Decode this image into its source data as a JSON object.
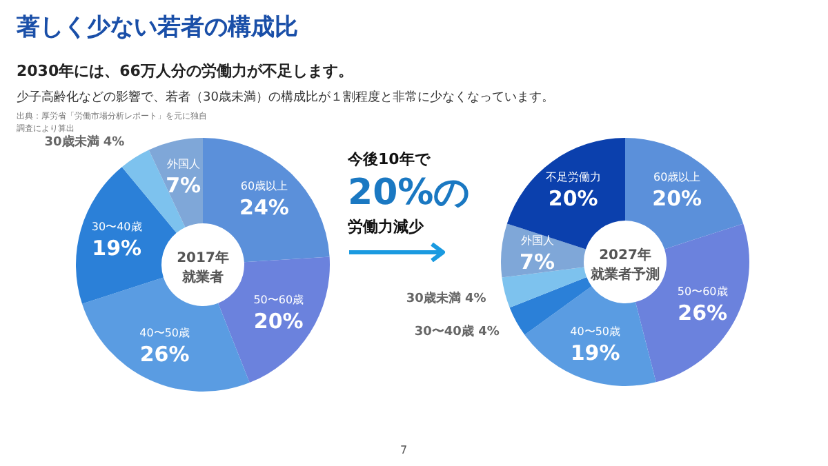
{
  "chart_data": [
    {
      "type": "donut",
      "title": "著しく少ない若者の構成比",
      "subtitle": "2030年には、66万人分の労働力が不足します。",
      "annotations": [
        "少子高齢化などの影響で、若者（30歳未満）の構成比が１割程度と非常に少なくなっています。",
        "出典：厚労省「労働市場分析レポート」を元に独自調査により算出",
        "7",
        "2017年",
        "就業者"
      ],
      "categories": [
        "60歳以上",
        "50〜60歳",
        "40〜50歳",
        "30〜40歳",
        "30歳未満",
        "外国人"
      ],
      "values": [
        24,
        20,
        26,
        19,
        4,
        7
      ],
      "value_labels": [
        "24%",
        "20%",
        "26%",
        "19%",
        "4%",
        "7%"
      ],
      "colors": [
        "#5b90da",
        "#6b82dd",
        "#5a9ce2",
        "#2b80d8",
        "#7dc2ee",
        "#7fa7d8"
      ]
    },
    {
      "type": "donut",
      "annotations": [
        "今後10年で",
        "20%の",
        "労働力減少",
        "2027年",
        "就業者予測"
      ],
      "categories": [
        "60歳以上",
        "50〜60歳",
        "40〜50歳",
        "30〜40歳",
        "30歳未満",
        "外国人",
        "不足労働力"
      ],
      "values": [
        20,
        26,
        19,
        4,
        4,
        7,
        20
      ],
      "value_labels": [
        "20%",
        "26%",
        "19%",
        "4%",
        "4%",
        "7%",
        "20%"
      ],
      "colors": [
        "#5b90da",
        "#6b82dd",
        "#5a9ce2",
        "#2b80d8",
        "#7dc2ee",
        "#7fa7d8",
        "#0b40ad"
      ]
    }
  ]
}
